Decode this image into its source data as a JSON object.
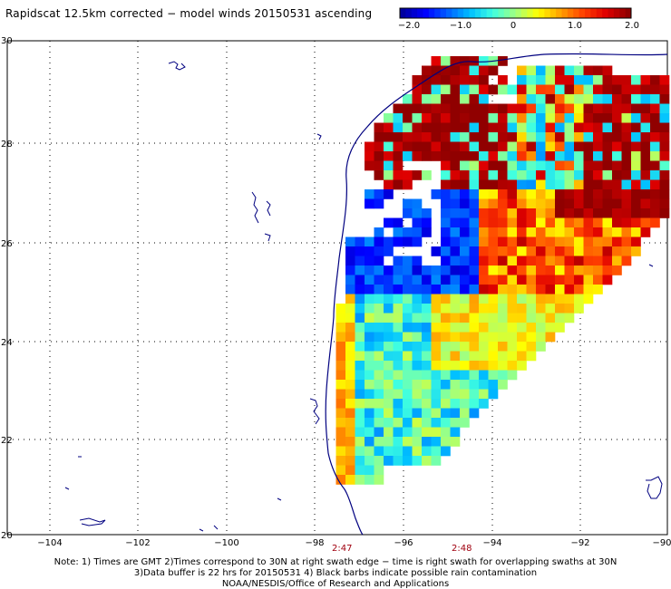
{
  "title": "Rapidscat 12.5km corrected − model winds 20150531 ascending",
  "colorbar": {
    "ticks": [
      "−2.0",
      "−1.0",
      "0",
      "1.0",
      "2.0"
    ],
    "min": -2.0,
    "max": 2.0,
    "colors": [
      "#0000a0",
      "#0000ff",
      "#0060ff",
      "#00c0ff",
      "#40ffe0",
      "#a0ff80",
      "#ffff00",
      "#ffa000",
      "#ff4000",
      "#e00000",
      "#900000"
    ]
  },
  "axes": {
    "lon_ticks": [
      "−104",
      "−102",
      "−100",
      "−98",
      "−96",
      "−94",
      "−92",
      "−90"
    ],
    "lat_ticks": [
      "30",
      "28",
      "26",
      "24",
      "22",
      "20"
    ]
  },
  "times": {
    "left": "2:47",
    "right": "2:48"
  },
  "notes": [
    "Note: 1) Times are GMT 2)Times correspond to 30N at right swath edge − time is right swath for overlapping swaths at 30N",
    "3)Data buffer is 22 hrs for 20150531 4) Black barbs indicate possible rain contamination",
    "NOAA/NESDIS/Office of Research and Applications"
  ],
  "colors": {
    "coast": "#000080",
    "grid": "#000000",
    "time_text": "#a0000f"
  }
}
